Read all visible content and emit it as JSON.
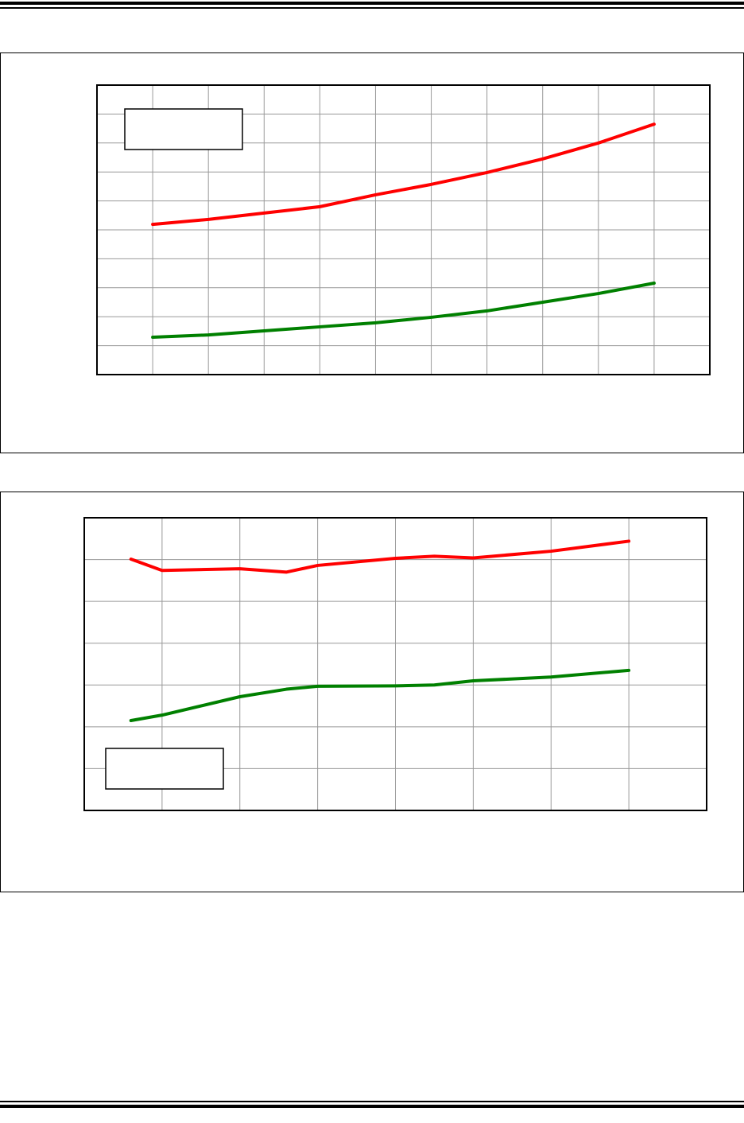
{
  "chart_data": [
    {
      "type": "line",
      "xlim": [
        0,
        11
      ],
      "xticks": [
        1,
        2,
        3,
        4,
        5,
        6,
        7,
        8,
        9,
        10
      ],
      "ylim": [
        0,
        10
      ],
      "yticks": [
        1,
        2,
        3,
        4,
        5,
        6,
        7,
        8,
        9
      ],
      "grid": true,
      "series": [
        {
          "color": "#ff0000",
          "x": [
            1,
            2,
            3,
            4,
            5,
            6,
            7,
            8,
            9,
            10
          ],
          "values": [
            5.19,
            5.36,
            5.58,
            5.8,
            6.21,
            6.57,
            6.98,
            7.45,
            8.0,
            8.65
          ]
        },
        {
          "color": "#008000",
          "x": [
            1,
            2,
            3,
            4,
            5,
            6,
            7,
            8,
            9,
            10
          ],
          "values": [
            1.29,
            1.37,
            1.51,
            1.65,
            1.79,
            1.98,
            2.2,
            2.5,
            2.8,
            3.16
          ]
        }
      ]
    },
    {
      "type": "line",
      "xlim": [
        0,
        8
      ],
      "xticks": [
        1,
        2,
        3,
        4,
        5,
        6,
        7
      ],
      "ylim": [
        0,
        7
      ],
      "yticks": [
        1,
        2,
        3,
        4,
        5,
        6
      ],
      "grid": true,
      "series": [
        {
          "color": "#ff0000",
          "x": [
            0.6,
            1,
            2,
            2.6,
            3,
            4,
            4.5,
            5,
            6,
            7
          ],
          "values": [
            6.01,
            5.74,
            5.78,
            5.7,
            5.86,
            6.03,
            6.08,
            6.04,
            6.2,
            6.44
          ]
        },
        {
          "color": "#008000",
          "x": [
            0.6,
            1,
            2,
            2.6,
            3,
            4,
            4.5,
            5,
            6,
            7
          ],
          "values": [
            2.15,
            2.28,
            2.72,
            2.9,
            2.97,
            2.98,
            3.0,
            3.1,
            3.19,
            3.35
          ]
        }
      ]
    }
  ]
}
